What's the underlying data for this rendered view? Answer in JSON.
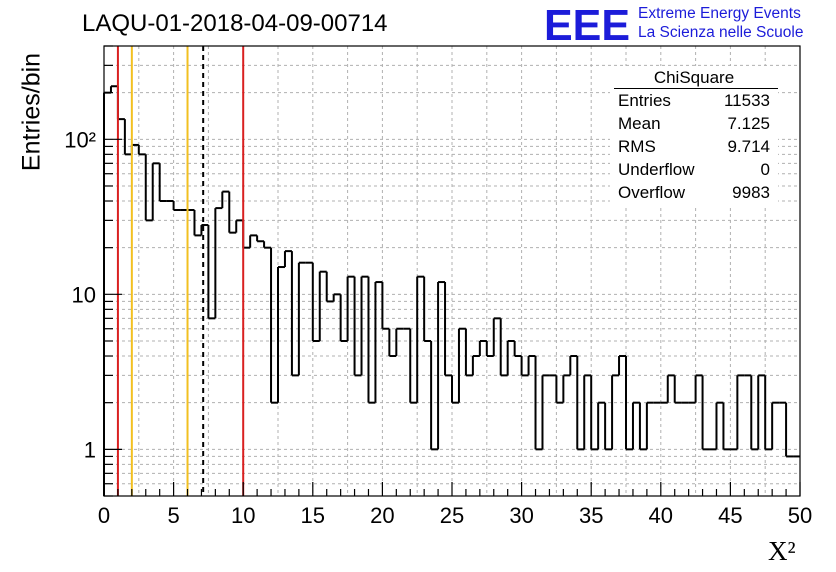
{
  "header": {
    "title": "LAQU-01-2018-04-09-00714",
    "logo_text": "EEE",
    "logo_line1": "Extreme Energy Events",
    "logo_line2": "La Scienza nelle Scuole"
  },
  "stats": {
    "title": "ChiSquare",
    "rows": [
      {
        "label": "Entries",
        "value": "11533"
      },
      {
        "label": "Mean",
        "value": "7.125"
      },
      {
        "label": "RMS",
        "value": "9.714"
      },
      {
        "label": "Underflow",
        "value": "0"
      },
      {
        "label": "Overflow",
        "value": "9983"
      }
    ]
  },
  "colors": {
    "histogram": "#000000",
    "red_line": "#d92020",
    "yellow_line": "#f2c020",
    "mean_line": "#000000",
    "logo": "#1c1cd9",
    "grid": "#b0b0b0"
  },
  "chart_data": {
    "type": "histogram",
    "title": "LAQU-01-2018-04-09-00714",
    "xlabel": "X²",
    "ylabel": "Entries/bin",
    "xlim": [
      0,
      50
    ],
    "ylim": [
      0.5,
      400
    ],
    "yscale": "log",
    "grid": true,
    "bin_width": 0.5,
    "bin_start": 0,
    "x_ticks": [
      0,
      5,
      10,
      15,
      20,
      25,
      30,
      35,
      40,
      45,
      50
    ],
    "x_tick_labels": [
      "0",
      "5",
      "10",
      "15",
      "20",
      "25",
      "30",
      "35",
      "40",
      "45",
      "50"
    ],
    "y_ticks": [
      1,
      10,
      100
    ],
    "y_tick_labels": [
      "1",
      "10",
      "10²"
    ],
    "counts": [
      200,
      220,
      135,
      80,
      92,
      80,
      30,
      70,
      40,
      40,
      35,
      35,
      35,
      24,
      28,
      7,
      36,
      46,
      25,
      30,
      20,
      24,
      22,
      20,
      2,
      15,
      19,
      3,
      16,
      16,
      5,
      14,
      9,
      10,
      5,
      13,
      3,
      13,
      2,
      12,
      6,
      4,
      6,
      6,
      2,
      13,
      5,
      1,
      12,
      3,
      2,
      6,
      3,
      4,
      5,
      4,
      7,
      3,
      5,
      4,
      3,
      4,
      1,
      3,
      3,
      2,
      3,
      4,
      1,
      3,
      1,
      2,
      1,
      3,
      4,
      1,
      2,
      1,
      2,
      2,
      2,
      3,
      2,
      2,
      2,
      3,
      1,
      1,
      2,
      1,
      1,
      3,
      3,
      1,
      3,
      1,
      2,
      2,
      0.9,
      0.9
    ],
    "vertical_lines": [
      {
        "x": 1,
        "color": "red",
        "style": "solid"
      },
      {
        "x": 2,
        "color": "yellow",
        "style": "solid"
      },
      {
        "x": 6,
        "color": "yellow",
        "style": "solid"
      },
      {
        "x": 7.125,
        "color": "black",
        "style": "dashed"
      },
      {
        "x": 10,
        "color": "red",
        "style": "solid"
      }
    ]
  }
}
